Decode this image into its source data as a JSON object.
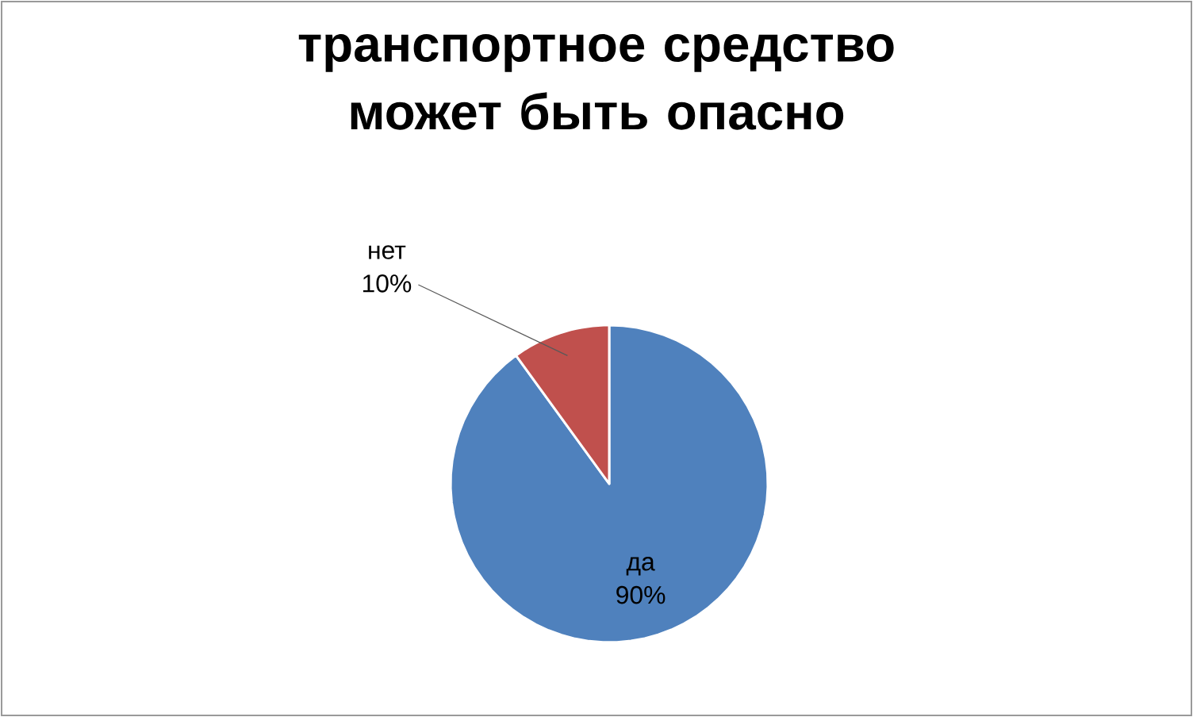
{
  "chart_data": {
    "type": "pie",
    "title": "транспортное средство может быть опасно",
    "categories": [
      "да",
      "нет"
    ],
    "values": [
      90,
      10
    ],
    "colors": [
      "#4f81bd",
      "#c0504d"
    ],
    "value_labels": [
      "90%",
      "10%"
    ]
  }
}
